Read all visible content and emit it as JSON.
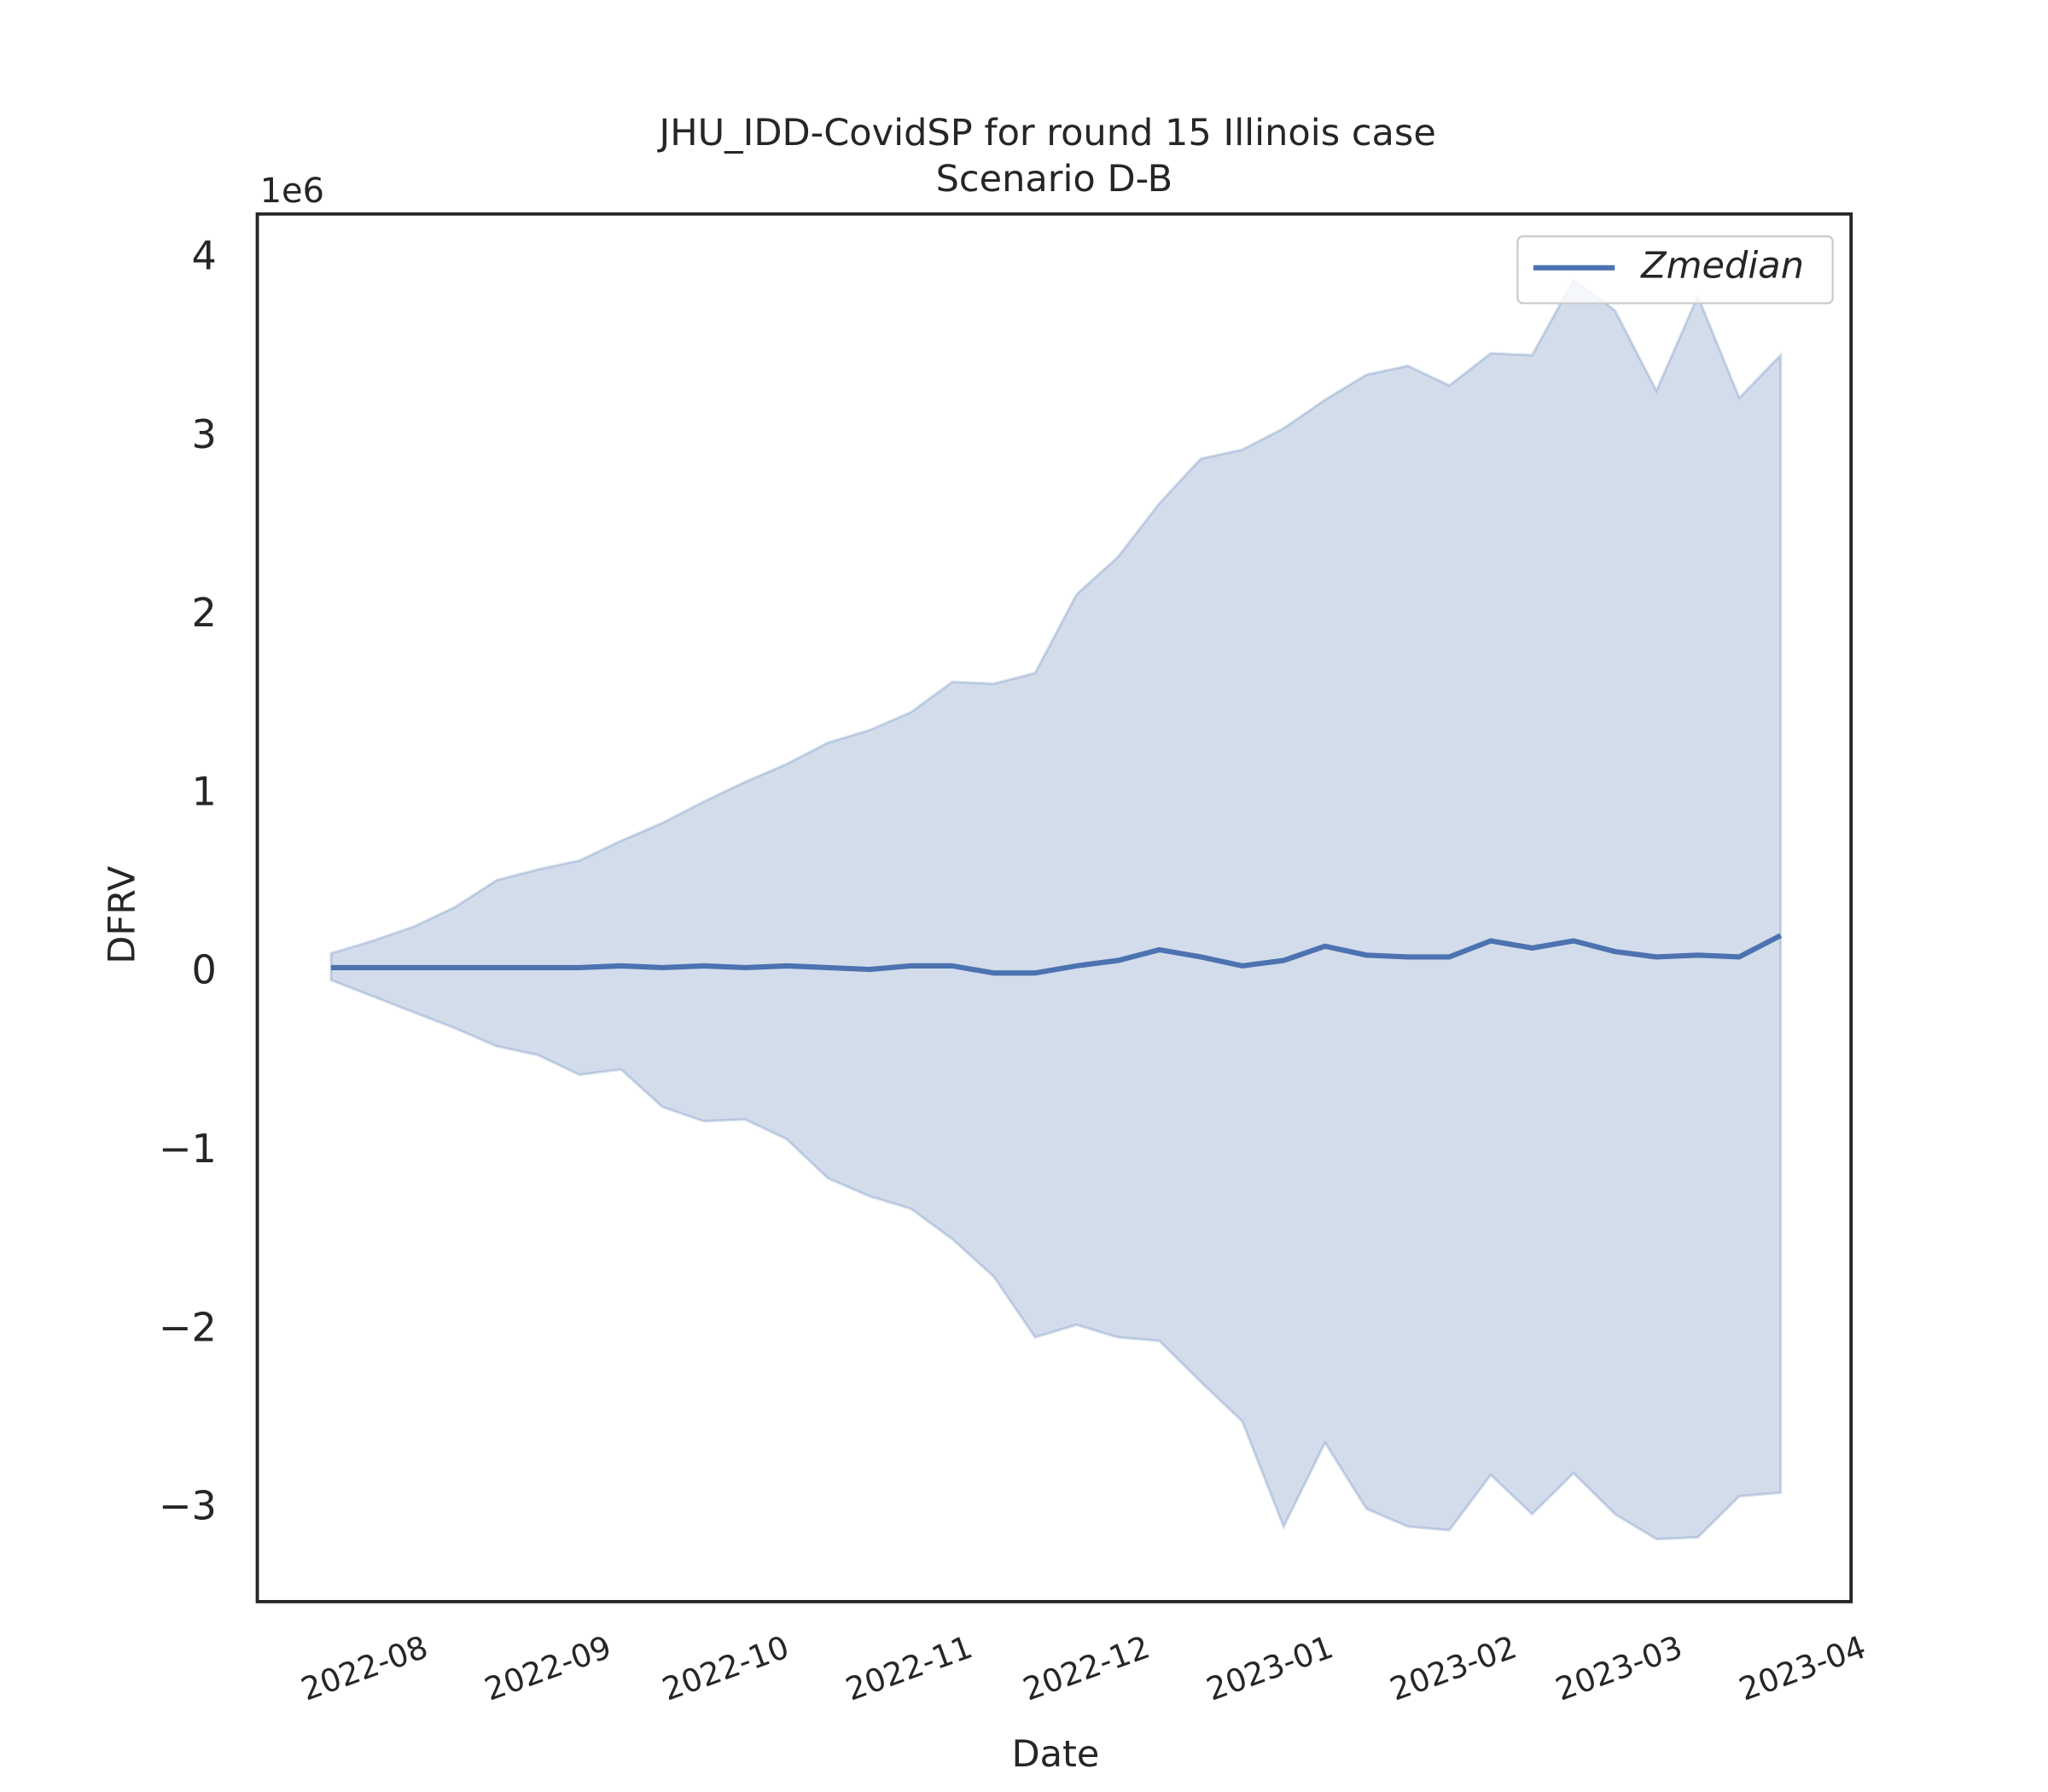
{
  "chart_data": {
    "type": "line",
    "title": "JHU_IDD-CovidSP for round 15 Illinois case",
    "subtitle": "Scenario D-B",
    "xlabel": "Date",
    "ylabel": "DFRV",
    "y_offset_label": "1e6",
    "categories": [
      null,
      null,
      null,
      null,
      null,
      null,
      null,
      null,
      null,
      null,
      null,
      null,
      null,
      null,
      null,
      null,
      null,
      null,
      null,
      null,
      null,
      null,
      null,
      null,
      null,
      null,
      null,
      null,
      null,
      null,
      null,
      null,
      null,
      null,
      null,
      null
    ],
    "series": [
      {
        "name": "Zmedian",
        "color": "#4c72b0",
        "band_color": "#4c72b0",
        "values": [
          30000,
          30000,
          30000,
          30000,
          30000,
          30000,
          30000,
          40000,
          30000,
          40000,
          30000,
          40000,
          30000,
          20000,
          40000,
          40000,
          0,
          0,
          40000,
          70000,
          130000,
          90000,
          40000,
          70000,
          150000,
          100000,
          90000,
          90000,
          180000,
          140000,
          180000,
          120000,
          90000,
          100000,
          90000,
          210000
        ],
        "upper": [
          110000,
          180000,
          260000,
          370000,
          520000,
          580000,
          630000,
          740000,
          840000,
          960000,
          1070000,
          1170000,
          1290000,
          1360000,
          1460000,
          1630000,
          1620000,
          1680000,
          2120000,
          2330000,
          2630000,
          2880000,
          2930000,
          3050000,
          3210000,
          3350000,
          3400000,
          3290000,
          3470000,
          3460000,
          3880000,
          3710000,
          3260000,
          3790000,
          3220000,
          3460000
        ],
        "lower": [
          -40000,
          -130000,
          -220000,
          -310000,
          -410000,
          -460000,
          -570000,
          -540000,
          -750000,
          -830000,
          -820000,
          -930000,
          -1150000,
          -1250000,
          -1320000,
          -1490000,
          -1700000,
          -2040000,
          -1970000,
          -2040000,
          -2060000,
          -2290000,
          -2510000,
          -3100000,
          -2630000,
          -3000000,
          -3100000,
          -3120000,
          -2810000,
          -3030000,
          -2800000,
          -3030000,
          -3170000,
          -3160000,
          -2930000,
          -2910000
        ]
      }
    ],
    "xlim": [
      -1.78,
      36.7
    ],
    "xticks": [
      {
        "value": 0.82,
        "label": "2022-08"
      },
      {
        "value": 5.25,
        "label": "2022-09"
      },
      {
        "value": 9.54,
        "label": "2022-10"
      },
      {
        "value": 13.97,
        "label": "2022-11"
      },
      {
        "value": 18.25,
        "label": "2022-12"
      },
      {
        "value": 22.68,
        "label": "2023-01"
      },
      {
        "value": 27.11,
        "label": "2023-02"
      },
      {
        "value": 31.11,
        "label": "2023-03"
      },
      {
        "value": 35.54,
        "label": "2023-04"
      }
    ],
    "ylim": [
      -3520000,
      4250000
    ],
    "yticks": [
      {
        "value": -3000000,
        "label": "−3"
      },
      {
        "value": -2000000,
        "label": "−2"
      },
      {
        "value": -1000000,
        "label": "−1"
      },
      {
        "value": 0,
        "label": "0"
      },
      {
        "value": 1000000,
        "label": "1"
      },
      {
        "value": 2000000,
        "label": "2"
      },
      {
        "value": 3000000,
        "label": "3"
      },
      {
        "value": 4000000,
        "label": "4"
      }
    ],
    "grid": false,
    "legend": "upper right"
  }
}
